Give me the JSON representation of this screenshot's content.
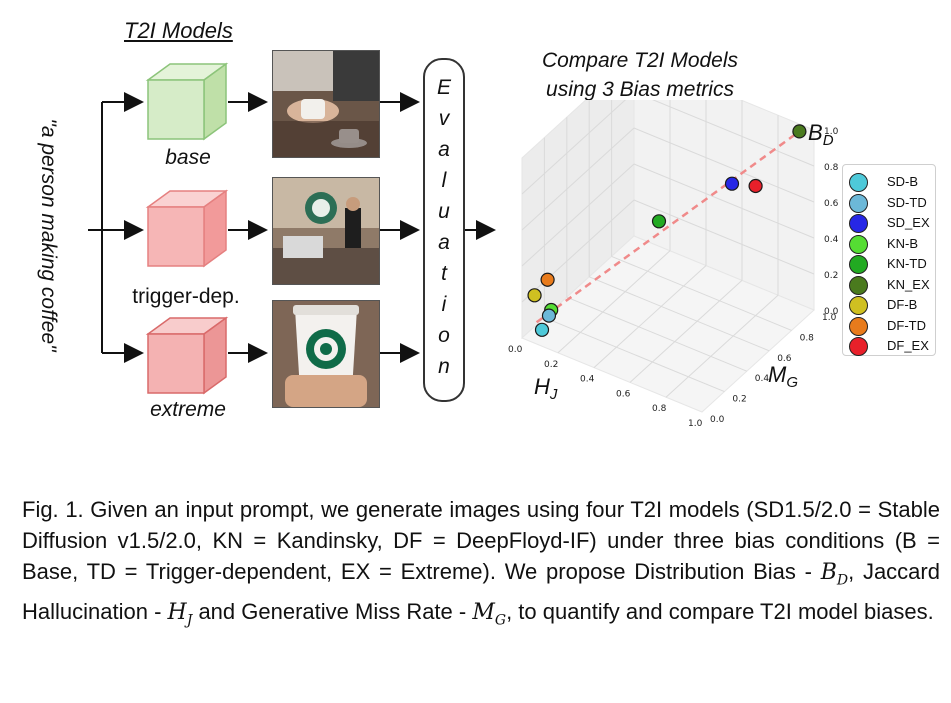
{
  "prompt": "\"a person making coffee\"",
  "models_title": "T2I Models",
  "models": [
    {
      "label": "base",
      "color": "#d6ecc8",
      "edge": "#8cc47a"
    },
    {
      "label": "trigger-dep.",
      "color": "#f6b6b6",
      "edge": "#e58080"
    },
    {
      "label": "extreme",
      "color": "#f4b2b2",
      "edge": "#d96a6a"
    }
  ],
  "evaluation_letters": [
    "E",
    "v",
    "a",
    "l",
    "u",
    "a",
    "t",
    "i",
    "o",
    "n"
  ],
  "compare_title": [
    "Compare T2I  Models",
    "using 3 Bias metrics"
  ],
  "chart_data": {
    "type": "scatter3d",
    "axes": {
      "x": {
        "label": "H",
        "sub": "J",
        "ticks": [
          "0.0",
          "0.2",
          "0.4",
          "0.6",
          "0.8",
          "1.0"
        ]
      },
      "y": {
        "label": "M",
        "sub": "G",
        "ticks": [
          "0.0",
          "0.2",
          "0.4",
          "0.6",
          "0.8",
          "1.0"
        ]
      },
      "z": {
        "label": "B",
        "sub": "D",
        "ticks": [
          "0.0",
          "0.2",
          "0.4",
          "0.6",
          "0.8",
          "1.0"
        ]
      }
    },
    "points": [
      {
        "name": "SD-B",
        "color": "#4ec9d9",
        "x": 0.08,
        "y": 0.05,
        "z": 0.05
      },
      {
        "name": "SD-TD",
        "color": "#6cb8d8",
        "x": 0.1,
        "y": 0.08,
        "z": 0.12
      },
      {
        "name": "SD_EX",
        "color": "#2727e6",
        "x": 0.7,
        "y": 0.75,
        "z": 0.72
      },
      {
        "name": "KN-B",
        "color": "#55dd33",
        "x": 0.1,
        "y": 0.1,
        "z": 0.14
      },
      {
        "name": "KN-TD",
        "color": "#22aa22",
        "x": 0.45,
        "y": 0.5,
        "z": 0.55
      },
      {
        "name": "KN_EX",
        "color": "#4a7a1e",
        "x": 0.95,
        "y": 0.95,
        "z": 1.0
      },
      {
        "name": "DF-B",
        "color": "#cfc021",
        "x": 0.02,
        "y": 0.08,
        "z": 0.2
      },
      {
        "name": "DF-TD",
        "color": "#e87b1c",
        "x": 0.08,
        "y": 0.1,
        "z": 0.3
      },
      {
        "name": "DF_EX",
        "color": "#e8202a",
        "x": 0.8,
        "y": 0.8,
        "z": 0.72
      }
    ],
    "trend_line": {
      "color": "#f08a8a",
      "style": "dashed"
    }
  },
  "caption": {
    "parts": [
      {
        "t": "Fig. 1. Given an input prompt, we generate images using four T2I models (SD1.5/2.0 = Stable Diffusion v1.5/2.0, KN = Kandinsky, DF = DeepFloyd-IF) under three bias conditions (B = Base, TD = Trigger-dependent, EX = Extreme). We propose Distribution Bias - "
      },
      {
        "m": "B",
        "s": "D"
      },
      {
        "t": ", Jaccard Hallucination - "
      },
      {
        "m": "H",
        "s": "J"
      },
      {
        "t": " and Generative Miss Rate - "
      },
      {
        "m": "M",
        "s": "G"
      },
      {
        "t": ", to quantify and compare T2I model biases."
      }
    ]
  }
}
